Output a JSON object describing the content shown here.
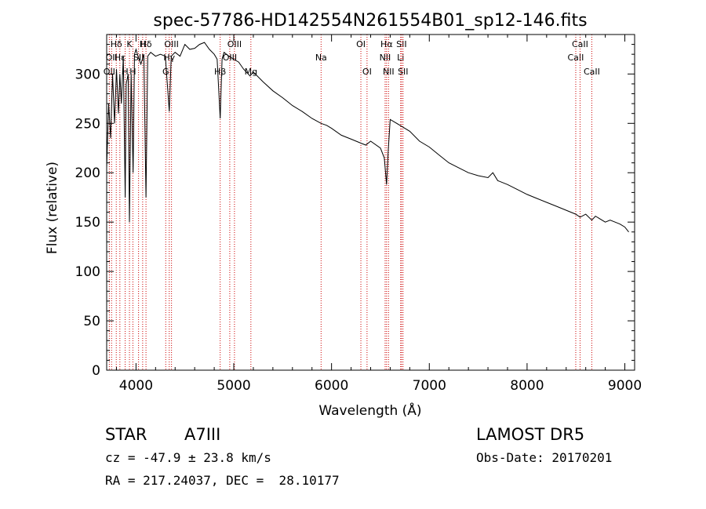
{
  "chart_data": {
    "type": "line",
    "title": "spec-57786-HD142554N261554B01_sp12-146.fits",
    "xlabel": "Wavelength (Å)",
    "ylabel": "Flux (relative)",
    "xlim": [
      3700,
      9100
    ],
    "ylim": [
      0,
      340
    ],
    "xticks": [
      4000,
      5000,
      6000,
      7000,
      8000,
      9000
    ],
    "yticks": [
      0,
      50,
      100,
      150,
      200,
      250,
      300
    ],
    "grid": false,
    "legend": "none",
    "line_color": "#000000",
    "marker_color": "#cc0000",
    "series": [
      {
        "x": [
          3700,
          3720,
          3740,
          3760,
          3780,
          3800,
          3820,
          3835,
          3850,
          3870,
          3889,
          3900,
          3920,
          3933,
          3950,
          3970,
          3985,
          4000,
          4020,
          4050,
          4080,
          4102,
          4120,
          4150,
          4200,
          4250,
          4300,
          4340,
          4360,
          4400,
          4450,
          4500,
          4550,
          4600,
          4650,
          4700,
          4750,
          4800,
          4830,
          4861,
          4880,
          4900,
          4950,
          5000,
          5050,
          5100,
          5167,
          5200,
          5300,
          5400,
          5500,
          5600,
          5700,
          5800,
          5893,
          5950,
          6000,
          6100,
          6200,
          6300,
          6350,
          6400,
          6500,
          6540,
          6563,
          6580,
          6600,
          6700,
          6800,
          6900,
          7000,
          7100,
          7200,
          7300,
          7400,
          7500,
          7600,
          7650,
          7700,
          7800,
          7900,
          8000,
          8100,
          8200,
          8300,
          8400,
          8498,
          8542,
          8600,
          8662,
          8700,
          8800,
          8850,
          8900,
          8950,
          9000,
          9040
        ],
        "y": [
          205,
          270,
          235,
          300,
          250,
          305,
          260,
          300,
          270,
          318,
          175,
          290,
          300,
          150,
          300,
          200,
          320,
          325,
          318,
          310,
          320,
          175,
          318,
          322,
          318,
          320,
          318,
          262,
          318,
          322,
          318,
          330,
          325,
          326,
          330,
          332,
          325,
          320,
          315,
          255,
          315,
          322,
          318,
          315,
          312,
          305,
          298,
          302,
          292,
          283,
          276,
          268,
          262,
          255,
          250,
          248,
          245,
          238,
          234,
          230,
          228,
          232,
          225,
          215,
          188,
          222,
          254,
          248,
          242,
          232,
          226,
          218,
          210,
          205,
          200,
          197,
          195,
          200,
          192,
          188,
          183,
          178,
          174,
          170,
          166,
          162,
          158,
          155,
          158,
          152,
          156,
          150,
          152,
          150,
          148,
          145,
          140
        ]
      }
    ],
    "line_markers": [
      {
        "x": 3727,
        "label": "OII",
        "row": 2
      },
      {
        "x": 3750,
        "label": "OII",
        "row": 1
      },
      {
        "x": 3798,
        "label": "Hδ",
        "row": 0
      },
      {
        "x": 3835,
        "label": "Hε",
        "row": 1
      },
      {
        "x": 3889,
        "label": "H",
        "row": 2
      },
      {
        "x": 3933,
        "label": "K",
        "row": 0
      },
      {
        "x": 3968,
        "label": "H",
        "row": 2
      },
      {
        "x": 4026,
        "label": "SII",
        "row": 1
      },
      {
        "x": 4068,
        "label": "H",
        "row": 0
      },
      {
        "x": 4102,
        "label": "Hδ",
        "row": 0
      },
      {
        "x": 4304,
        "label": "G",
        "row": 2
      },
      {
        "x": 4340,
        "label": "Hγ",
        "row": 1
      },
      {
        "x": 4363,
        "label": "OIII",
        "row": 0
      },
      {
        "x": 4861,
        "label": "Hβ",
        "row": 2
      },
      {
        "x": 4959,
        "label": "OIII",
        "row": 1
      },
      {
        "x": 5007,
        "label": "OIII",
        "row": 0
      },
      {
        "x": 5175,
        "label": "Mg",
        "row": 2
      },
      {
        "x": 5893,
        "label": "Na",
        "row": 1
      },
      {
        "x": 6300,
        "label": "OI",
        "row": 0
      },
      {
        "x": 6363,
        "label": "OI",
        "row": 2
      },
      {
        "x": 6548,
        "label": "NII",
        "row": 1
      },
      {
        "x": 6563,
        "label": "Hα",
        "row": 0
      },
      {
        "x": 6583,
        "label": "NII",
        "row": 2
      },
      {
        "x": 6707,
        "label": "Li",
        "row": 1
      },
      {
        "x": 6716,
        "label": "SII",
        "row": 0
      },
      {
        "x": 6731,
        "label": "SII",
        "row": 2
      },
      {
        "x": 8498,
        "label": "CaII",
        "row": 1
      },
      {
        "x": 8542,
        "label": "CaII",
        "row": 0
      },
      {
        "x": 8662,
        "label": "CaII",
        "row": 2
      }
    ]
  },
  "info": {
    "star_label": "STAR",
    "spectral_type": "A7III",
    "survey": "LAMOST DR5",
    "cz": "cz = -47.9 ± 23.8 km/s",
    "obs_date": "Obs-Date: 20170201",
    "coords": "RA = 217.24037, DEC =  28.10177"
  }
}
